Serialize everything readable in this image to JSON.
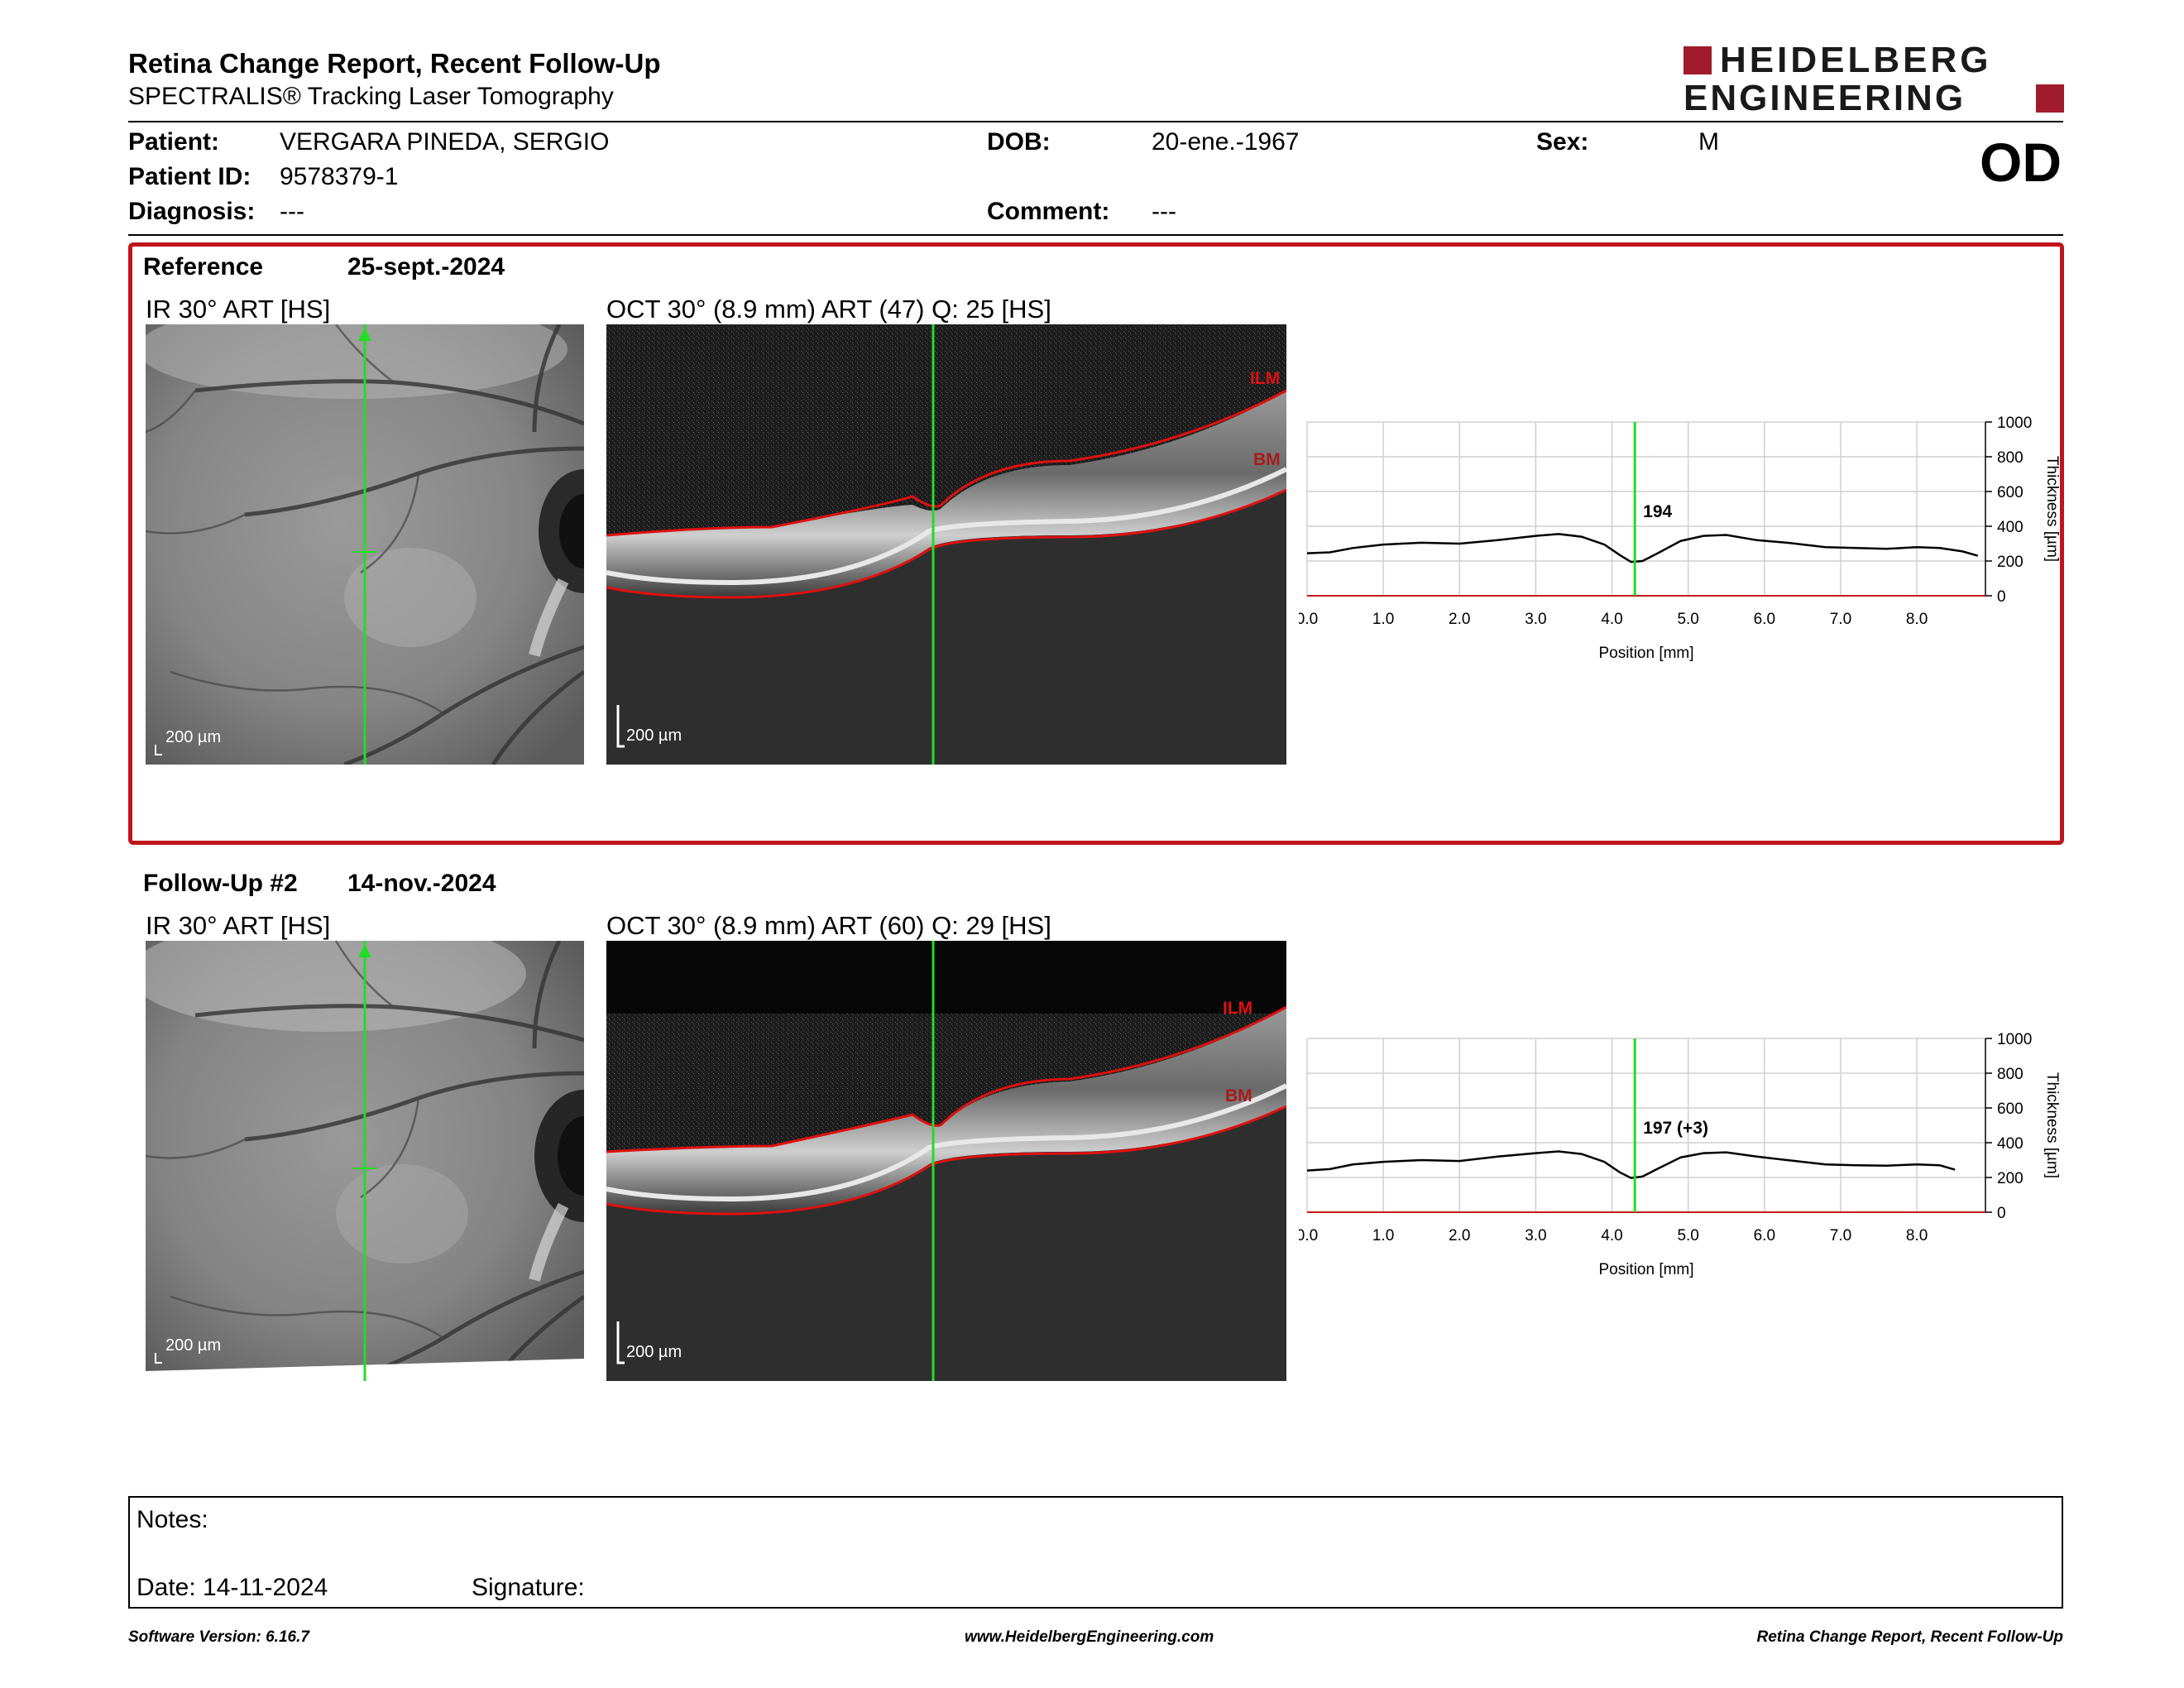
{
  "header": {
    "title": "Retina Change Report, Recent Follow-Up",
    "subtitle": "SPECTRALIS® Tracking Laser Tomography",
    "logo_line1": "HEIDELBERG",
    "logo_line2": "ENGINEERING",
    "eye": "OD"
  },
  "patient": {
    "patient_label": "Patient:",
    "patient_value": "VERGARA PINEDA, SERGIO",
    "id_label": "Patient ID:",
    "id_value": "9578379-1",
    "diagnosis_label": "Diagnosis:",
    "diagnosis_value": "---",
    "dob_label": "DOB:",
    "dob_value": "20-ene.-1967",
    "comment_label": "Comment:",
    "comment_value": "---",
    "sex_label": "Sex:",
    "sex_value": "M"
  },
  "reference": {
    "label": "Reference",
    "date": "25-sept.-2024",
    "ir_title": "IR 30° ART [HS]",
    "oct_title": "OCT 30° (8.9 mm) ART (47) Q: 25 [HS]",
    "ir_scale": "200 µm",
    "oct_scale": "200 µm",
    "ilm_label": "ILM",
    "bm_label": "BM",
    "value_label": "194"
  },
  "followup": {
    "label": "Follow-Up #2",
    "date": "14-nov.-2024",
    "ir_title": "IR 30° ART [HS]",
    "oct_title": "OCT 30° (8.9 mm) ART (60) Q: 29 [HS]",
    "ir_scale": "200 µm",
    "oct_scale": "200 µm",
    "ilm_label": "ILM",
    "bm_label": "BM",
    "value_label": "197 (+3)"
  },
  "chart_data": [
    {
      "type": "line",
      "xlabel": "Position [mm]",
      "ylabel": "Thickness [µm]",
      "xlim": [
        0,
        8.9
      ],
      "ylim": [
        0,
        1000
      ],
      "x_ticks": [
        "0.0",
        "1.0",
        "2.0",
        "3.0",
        "4.0",
        "5.0",
        "6.0",
        "7.0",
        "8.0"
      ],
      "y_ticks": [
        "0",
        "200",
        "400",
        "600",
        "800",
        "1000"
      ],
      "marker_x": 4.3,
      "marker_label": "194",
      "series": [
        {
          "x": [
            0.0,
            0.3,
            0.6,
            1.0,
            1.5,
            2.0,
            2.5,
            3.0,
            3.3,
            3.6,
            3.9,
            4.1,
            4.25,
            4.4,
            4.6,
            4.9,
            5.2,
            5.5,
            5.9,
            6.3,
            6.8,
            7.2,
            7.6,
            8.0,
            8.3,
            8.6,
            8.8
          ],
          "y": [
            245,
            250,
            275,
            295,
            305,
            300,
            320,
            345,
            355,
            340,
            295,
            235,
            195,
            200,
            245,
            315,
            345,
            350,
            320,
            305,
            280,
            275,
            270,
            280,
            275,
            255,
            230
          ]
        }
      ]
    },
    {
      "type": "line",
      "xlabel": "Position [mm]",
      "ylabel": "Thickness [µm]",
      "xlim": [
        0,
        8.9
      ],
      "ylim": [
        0,
        1000
      ],
      "x_ticks": [
        "0.0",
        "1.0",
        "2.0",
        "3.0",
        "4.0",
        "5.0",
        "6.0",
        "7.0",
        "8.0"
      ],
      "y_ticks": [
        "0",
        "200",
        "400",
        "600",
        "800",
        "1000"
      ],
      "marker_x": 4.3,
      "marker_label": "197 (+3)",
      "series": [
        {
          "x": [
            0.0,
            0.3,
            0.6,
            1.0,
            1.5,
            2.0,
            2.5,
            3.0,
            3.3,
            3.6,
            3.9,
            4.1,
            4.25,
            4.4,
            4.6,
            4.9,
            5.2,
            5.5,
            5.9,
            6.3,
            6.8,
            7.2,
            7.6,
            8.0,
            8.3,
            8.5
          ],
          "y": [
            240,
            248,
            275,
            290,
            300,
            295,
            320,
            340,
            350,
            335,
            290,
            230,
            197,
            205,
            250,
            315,
            340,
            345,
            320,
            300,
            275,
            270,
            268,
            275,
            270,
            245
          ]
        }
      ]
    }
  ],
  "notes": {
    "notes_label": "Notes:",
    "date_label": "Date: 14-11-2024",
    "signature_label": "Signature:"
  },
  "footer": {
    "software": "Software Version: 6.16.7",
    "website": "www.HeidelbergEngineering.com",
    "report": "Retina Change Report, Recent Follow-Up"
  },
  "colors": {
    "accent_red": "#c0141c",
    "brand_red": "#a01c2c",
    "marker_green": "#22dd22"
  }
}
